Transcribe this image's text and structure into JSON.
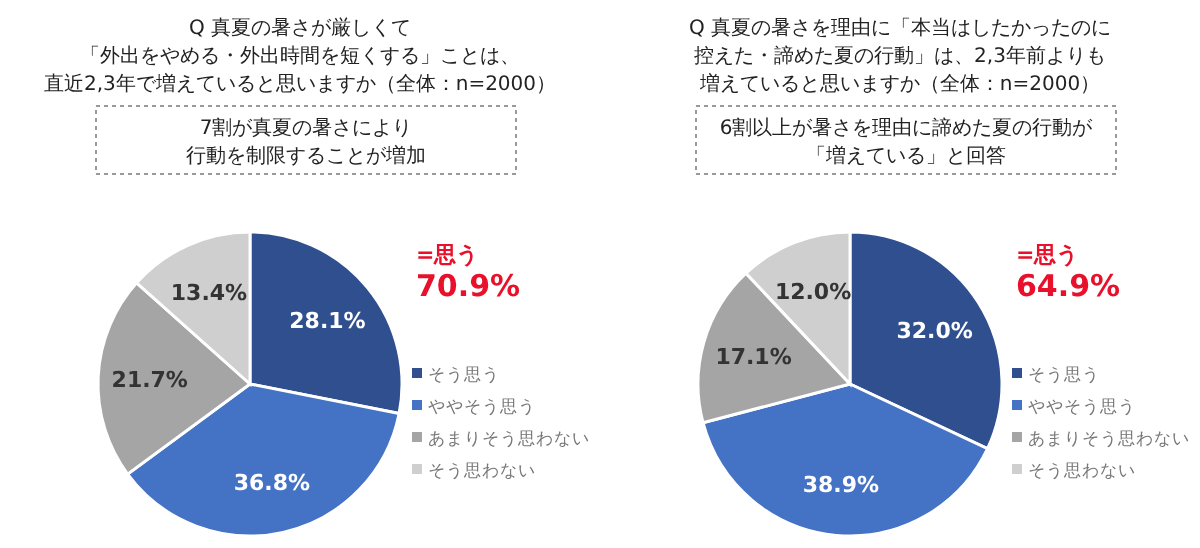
{
  "chart_data": [
    {
      "type": "pie",
      "title": [
        "Q 真夏の暑さが厳しくて",
        "「外出をやめる・外出時間を短くする」ことは、",
        "直近2,3年で増えていると思いますか（全体：n=2000）"
      ],
      "subtitle": [
        "7割が真夏の暑さにより",
        "行動を制限することが増加"
      ],
      "categories": [
        "そう思う",
        "ややそう思う",
        "あまりそう思わない",
        "そう思わない"
      ],
      "values": [
        28.1,
        36.8,
        21.7,
        13.4
      ],
      "colors": [
        "#2f4f8f",
        "#4472c4",
        "#a5a5a5",
        "#cfcfcf"
      ],
      "value_labels": [
        "28.1%",
        "36.8%",
        "21.7%",
        "13.4%"
      ],
      "annotations": [
        "=思う",
        "70.9%"
      ],
      "legend": "right"
    },
    {
      "type": "pie",
      "title": [
        "Q 真夏の暑さを理由に「本当はしたかったのに",
        "控えた・諦めた夏の行動」は、2,3年前よりも",
        "増えていると思いますか（全体：n=2000）"
      ],
      "subtitle": [
        "6割以上が暑さを理由に諦めた夏の行動が",
        "「増えている」と回答"
      ],
      "categories": [
        "そう思う",
        "ややそう思う",
        "あまりそう思わない",
        "そう思わない"
      ],
      "values": [
        32.0,
        38.9,
        17.1,
        12.0
      ],
      "colors": [
        "#2f4f8f",
        "#4472c4",
        "#a5a5a5",
        "#cfcfcf"
      ],
      "value_labels": [
        "32.0%",
        "38.9%",
        "17.1%",
        "12.0%"
      ],
      "annotations": [
        "=思う",
        "64.9%"
      ],
      "legend": "right"
    }
  ]
}
